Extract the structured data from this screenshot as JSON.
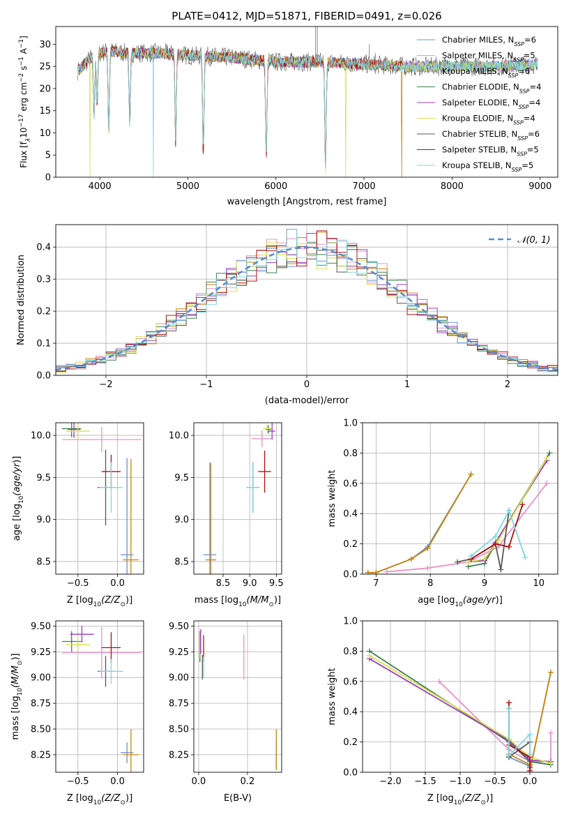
{
  "title": "PLATE=0412, MJD=51871, FIBERID=0491, z=0.026",
  "series_colors": [
    "#6a8fd8",
    "#e991c8",
    "#c8860a",
    "#3f7f4f",
    "#9a3fbf",
    "#d8e04a",
    "#555555",
    "#b01010",
    "#7fd8e0"
  ],
  "chart_data": [
    {
      "id": "spectrum",
      "type": "line",
      "xlabel": "wavelength [Angstrom, rest frame]",
      "ylabel": "Flux [f_λ 10^-17 erg cm^-2 s^-1 A^-1]",
      "ylabel_parts": [
        "Flux [f",
        "λ",
        "10",
        "−17",
        " erg cm",
        "−2",
        " s",
        "−1",
        " A",
        "−1",
        "]"
      ],
      "xlim": [
        3500,
        9200
      ],
      "ylim": [
        0,
        34
      ],
      "xticks": [
        4000,
        5000,
        6000,
        7000,
        8000,
        9000
      ],
      "yticks": [
        0,
        5,
        10,
        15,
        20,
        25,
        30
      ],
      "grid": false,
      "legend_position": "top-right",
      "legend": [
        {
          "name": "Chabrier MILES, N_SSP=6",
          "label": "Chabrier MILES, N",
          "n": "6"
        },
        {
          "name": "Salpeter MILES, N_SSP=5",
          "label": "Salpeter MILES, N",
          "n": "5"
        },
        {
          "name": "Kroupa MILES, N_SSP=6",
          "label": "Kroupa MILES, N",
          "n": "6"
        },
        {
          "name": "Chabrier ELODIE, N_SSP=4",
          "label": "Chabrier ELODIE, N",
          "n": "4"
        },
        {
          "name": "Salpeter ELODIE, N_SSP=4",
          "label": "Salpeter ELODIE, N",
          "n": "4"
        },
        {
          "name": "Kroupa ELODIE, N_SSP=4",
          "label": "Kroupa ELODIE, N",
          "n": "4"
        },
        {
          "name": "Chabrier STELIB, N_SSP=6",
          "label": "Chabrier STELIB, N",
          "n": "6"
        },
        {
          "name": "Salpeter STELIB, N_SSP=5",
          "label": "Salpeter STELIB, N",
          "n": "5"
        },
        {
          "name": "Kroupa STELIB, N_SSP=5",
          "label": "Kroupa STELIB, N",
          "n": "5"
        }
      ],
      "legend_sub": "SSP",
      "continuum": [
        [
          3750,
          24
        ],
        [
          3800,
          25
        ],
        [
          3900,
          27
        ],
        [
          4000,
          28
        ],
        [
          4100,
          28.5
        ],
        [
          4300,
          28
        ],
        [
          4500,
          28
        ],
        [
          4700,
          28
        ],
        [
          5000,
          27.5
        ],
        [
          5500,
          27
        ],
        [
          6000,
          26
        ],
        [
          6500,
          26
        ],
        [
          7000,
          25.5
        ],
        [
          7500,
          25
        ],
        [
          8000,
          25
        ],
        [
          8500,
          25
        ],
        [
          9000,
          25.5
        ]
      ],
      "absorption_lines": [
        [
          3934,
          14
        ],
        [
          3969,
          11
        ],
        [
          4102,
          18
        ],
        [
          4340,
          16
        ],
        [
          4861,
          20
        ],
        [
          5175,
          22
        ],
        [
          5890,
          22
        ],
        [
          6563,
          24
        ]
      ],
      "data_range": [
        3750,
        8970
      ],
      "model_dropouts": [
        {
          "series": 5,
          "x": 3890,
          "to": 0
        },
        {
          "series": 8,
          "x": 4610,
          "to": 0
        },
        {
          "series": 5,
          "x": 6790,
          "to": 0
        },
        {
          "series": 2,
          "x": 7430,
          "to": 0
        }
      ]
    },
    {
      "id": "residuals",
      "type": "step-histogram",
      "xlabel": "(data-model)/error",
      "ylabel": "Normed distribution",
      "xlim": [
        -2.5,
        2.5
      ],
      "ylim": [
        0,
        0.47
      ],
      "xticks": [
        -2,
        -1,
        0,
        1,
        2
      ],
      "xtick_labels": [
        "−2",
        "−1",
        "0",
        "1",
        "2"
      ],
      "yticks": [
        0.0,
        0.1,
        0.2,
        0.3,
        0.4
      ],
      "grid": true,
      "bin_width": 0.1,
      "reference_curve": {
        "name": "N(0,1)",
        "label": "𝒩(0, 1)",
        "mean": 0,
        "sigma": 1,
        "style": "dashed"
      }
    },
    {
      "id": "age_vs_Z",
      "type": "errorbar",
      "xlabel": "Z [log10(Z/Z⊙)]",
      "ylabel": "age [log10(age/yr)]",
      "xlim": [
        -0.78,
        0.33
      ],
      "ylim": [
        8.35,
        10.15
      ],
      "xticks": [
        -0.5,
        0.0
      ],
      "xtick_labels": [
        "−0.5",
        "0.0"
      ],
      "yticks": [
        8.5,
        9.0,
        9.5,
        10.0
      ],
      "ytick_labels": [
        "8.5",
        "9.0",
        "9.5",
        "10.0"
      ],
      "grid": true,
      "points": [
        {
          "s": 0,
          "x": 0.12,
          "y": 8.58,
          "xe": 0.08,
          "ye": 1.15
        },
        {
          "s": 1,
          "x": -0.2,
          "y": 9.95,
          "xe": 0.5,
          "ye": 0.15
        },
        {
          "s": 2,
          "x": 0.17,
          "y": 8.52,
          "xe": 0.1,
          "ye": 1.2
        },
        {
          "s": 3,
          "x": -0.58,
          "y": 10.08,
          "xe": 0.12,
          "ye": 0.1
        },
        {
          "s": 4,
          "x": -0.55,
          "y": 10.07,
          "xe": 0.08,
          "ye": 0.1
        },
        {
          "s": 5,
          "x": -0.5,
          "y": 10.05,
          "xe": 0.15,
          "ye": 0.1
        },
        {
          "s": 6,
          "x": -0.15,
          "y": 9.38,
          "xe": 0.1,
          "ye": 0.45
        },
        {
          "s": 7,
          "x": -0.08,
          "y": 9.57,
          "xe": 0.12,
          "ye": 0.2
        },
        {
          "s": 8,
          "x": -0.08,
          "y": 9.38,
          "xe": 0.15,
          "ye": 0.3
        }
      ]
    },
    {
      "id": "age_vs_mass",
      "type": "errorbar",
      "xlabel": "mass [log10(M/M⊙)]",
      "ylabel": "",
      "xlim": [
        7.95,
        9.6
      ],
      "ylim": [
        8.35,
        10.15
      ],
      "xticks": [
        8.5,
        9.0,
        9.5
      ],
      "xtick_labels": [
        "8.5",
        "9.0",
        "9.5"
      ],
      "yticks": [
        8.5,
        9.0,
        9.5,
        10.0
      ],
      "ytick_labels": [
        "8.5",
        "9.0",
        "9.5",
        "10.0"
      ],
      "grid": true,
      "points": [
        {
          "s": 0,
          "x": 8.25,
          "y": 8.58,
          "xe": 0.12,
          "ye": 1.1
        },
        {
          "s": 1,
          "x": 9.23,
          "y": 9.96,
          "xe": 0.2,
          "ye": 0.1
        },
        {
          "s": 2,
          "x": 8.27,
          "y": 8.52,
          "xe": 0.1,
          "ye": 1.15
        },
        {
          "s": 3,
          "x": 9.35,
          "y": 10.07,
          "xe": 0.05,
          "ye": 0.05
        },
        {
          "s": 4,
          "x": 9.42,
          "y": 10.05,
          "xe": 0.06,
          "ye": 0.1
        },
        {
          "s": 5,
          "x": 9.33,
          "y": 10.08,
          "xe": 0.08,
          "ye": 0.05
        },
        {
          "s": 6,
          "x": 9.06,
          "y": 9.38,
          "xe": 0.12,
          "ye": 0.3
        },
        {
          "s": 7,
          "x": 9.28,
          "y": 9.57,
          "xe": 0.12,
          "ye": 0.25
        },
        {
          "s": 8,
          "x": 9.06,
          "y": 9.38,
          "xe": 0.12,
          "ye": 0.3
        }
      ]
    },
    {
      "id": "mass_weight_vs_age",
      "type": "line",
      "xlabel": "age [log10(age/yr)]",
      "ylabel": "mass weight",
      "xlim": [
        6.75,
        10.35
      ],
      "ylim": [
        0,
        1.0
      ],
      "xticks": [
        7,
        8,
        9,
        10
      ],
      "xtick_labels": [
        "7",
        "8",
        "9",
        "10"
      ],
      "yticks": [
        0.0,
        0.2,
        0.4,
        0.6,
        0.8,
        1.0
      ],
      "ytick_labels": [
        "0.0",
        "0.2",
        "0.4",
        "0.6",
        "0.8",
        "1.0"
      ],
      "grid": true,
      "series": [
        {
          "s": 0,
          "points": [
            [
              6.85,
              0.01
            ],
            [
              7.0,
              0.01
            ],
            [
              7.65,
              0.1
            ],
            [
              7.95,
              0.18
            ],
            [
              8.75,
              0.66
            ]
          ]
        },
        {
          "s": 1,
          "points": [
            [
              7.2,
              0.015
            ],
            [
              7.95,
              0.04
            ],
            [
              8.7,
              0.08
            ],
            [
              9.25,
              0.18
            ],
            [
              10.15,
              0.6
            ]
          ]
        },
        {
          "s": 2,
          "points": [
            [
              6.85,
              0.01
            ],
            [
              7.0,
              0.01
            ],
            [
              7.65,
              0.1
            ],
            [
              7.95,
              0.17
            ],
            [
              8.75,
              0.66
            ]
          ]
        },
        {
          "s": 3,
          "points": [
            [
              8.7,
              0.05
            ],
            [
              9.0,
              0.07
            ],
            [
              9.2,
              0.2
            ],
            [
              10.2,
              0.8
            ]
          ]
        },
        {
          "s": 4,
          "points": [
            [
              8.7,
              0.08
            ],
            [
              9.0,
              0.09
            ],
            [
              9.2,
              0.21
            ],
            [
              10.15,
              0.75
            ]
          ]
        },
        {
          "s": 5,
          "points": [
            [
              8.7,
              0.08
            ],
            [
              9.0,
              0.1
            ],
            [
              9.25,
              0.22
            ],
            [
              10.15,
              0.77
            ]
          ]
        },
        {
          "s": 6,
          "points": [
            [
              8.5,
              0.08
            ],
            [
              8.75,
              0.1
            ],
            [
              9.2,
              0.2
            ],
            [
              9.3,
              0.03
            ],
            [
              9.45,
              0.42
            ]
          ]
        },
        {
          "s": 7,
          "points": [
            [
              8.75,
              0.1
            ],
            [
              9.2,
              0.2
            ],
            [
              9.45,
              0.18
            ],
            [
              9.7,
              0.46
            ]
          ]
        },
        {
          "s": 8,
          "points": [
            [
              8.75,
              0.12
            ],
            [
              9.2,
              0.25
            ],
            [
              9.45,
              0.42
            ],
            [
              9.75,
              0.11
            ]
          ]
        }
      ]
    },
    {
      "id": "mass_vs_Z",
      "type": "errorbar",
      "xlabel": "Z [log10(Z/Z⊙)]",
      "ylabel": "mass [log10(M/M⊙)]",
      "xlim": [
        -0.78,
        0.33
      ],
      "ylim": [
        8.08,
        9.55
      ],
      "xticks": [
        -0.5,
        0.0
      ],
      "xtick_labels": [
        "−0.5",
        "0.0"
      ],
      "yticks": [
        8.25,
        8.5,
        8.75,
        9.0,
        9.25,
        9.5
      ],
      "ytick_labels": [
        "8.25",
        "8.50",
        "8.75",
        "9.00",
        "9.25",
        "9.50"
      ],
      "grid": true,
      "points": [
        {
          "s": 0,
          "x": 0.12,
          "y": 8.27,
          "xe": 0.08,
          "ye": 0.1
        },
        {
          "s": 1,
          "x": -0.2,
          "y": 9.24,
          "xe": 0.5,
          "ye": 0.25
        },
        {
          "s": 2,
          "x": 0.17,
          "y": 8.25,
          "xe": 0.1,
          "ye": 0.25
        },
        {
          "s": 3,
          "x": -0.58,
          "y": 9.35,
          "xe": 0.12,
          "ye": 0.1
        },
        {
          "s": 4,
          "x": -0.45,
          "y": 9.42,
          "xe": 0.15,
          "ye": 0.08
        },
        {
          "s": 5,
          "x": -0.5,
          "y": 9.32,
          "xe": 0.15,
          "ye": 0.08
        },
        {
          "s": 6,
          "x": -0.15,
          "y": 9.06,
          "xe": 0.1,
          "ye": 0.15
        },
        {
          "s": 7,
          "x": -0.08,
          "y": 9.29,
          "xe": 0.12,
          "ye": 0.15
        },
        {
          "s": 8,
          "x": -0.08,
          "y": 9.06,
          "xe": 0.15,
          "ye": 0.12
        }
      ]
    },
    {
      "id": "mass_vs_ebv",
      "type": "errorbar",
      "xlabel": "E(B-V)",
      "ylabel": "",
      "xlim": [
        -0.02,
        0.34
      ],
      "ylim": [
        8.08,
        9.55
      ],
      "xticks": [
        0.0,
        0.2
      ],
      "xtick_labels": [
        "0.0",
        "0.2"
      ],
      "yticks": [
        8.25,
        8.5,
        8.75,
        9.0,
        9.25,
        9.5
      ],
      "ytick_labels": [
        "8.25",
        "8.50",
        "8.75",
        "9.00",
        "9.25",
        "9.50"
      ],
      "grid": true,
      "points": [
        {
          "s": 0,
          "x": 0.318,
          "y": 8.25,
          "xe": 0,
          "ye": 0.13
        },
        {
          "s": 1,
          "x": 0.185,
          "y": 9.2,
          "xe": 0,
          "ye": 0.22
        },
        {
          "s": 2,
          "x": 0.318,
          "y": 8.3,
          "xe": 0,
          "ye": 0.2
        },
        {
          "s": 3,
          "x": 0.005,
          "y": 9.3,
          "xe": 0,
          "ye": 0.15
        },
        {
          "s": 4,
          "x": 0.008,
          "y": 9.35,
          "xe": 0,
          "ye": 0.12
        },
        {
          "s": 5,
          "x": 0.003,
          "y": 9.32,
          "xe": 0,
          "ye": 0.12
        },
        {
          "s": 6,
          "x": 0.015,
          "y": 9.1,
          "xe": 0,
          "ye": 0.12
        },
        {
          "s": 7,
          "x": 0.02,
          "y": 9.28,
          "xe": 0,
          "ye": 0.13
        },
        {
          "s": 8,
          "x": 0.02,
          "y": 9.1,
          "xe": 0,
          "ye": 0.1
        }
      ]
    },
    {
      "id": "mass_weight_vs_Z",
      "type": "line",
      "xlabel": "Z [log10(Z/Z⊙)]",
      "ylabel": "mass weight",
      "xlim": [
        -2.4,
        0.4
      ],
      "ylim": [
        0,
        1.0
      ],
      "xticks": [
        -2.0,
        -1.5,
        -1.0,
        -0.5,
        0.0
      ],
      "xtick_labels": [
        "−2.0",
        "−1.5",
        "−1.0",
        "−0.5",
        "0.0"
      ],
      "yticks": [
        0.0,
        0.2,
        0.4,
        0.6,
        0.8,
        1.0
      ],
      "ytick_labels": [
        "0.0",
        "0.2",
        "0.4",
        "0.6",
        "0.8",
        "1.0"
      ],
      "grid": true,
      "series": [
        {
          "s": 0,
          "points": [
            [
              -0.3,
              0.1
            ],
            [
              0.0,
              0.04
            ],
            [
              0.0,
              0.01
            ],
            [
              0.3,
              0.66
            ]
          ]
        },
        {
          "s": 1,
          "points": [
            [
              -1.3,
              0.6
            ],
            [
              -0.3,
              0.15
            ],
            [
              0.0,
              0.07
            ],
            [
              0.3,
              0.07
            ],
            [
              0.3,
              0.26
            ]
          ]
        },
        {
          "s": 2,
          "points": [
            [
              -0.3,
              0.12
            ],
            [
              0.0,
              0.05
            ],
            [
              0.0,
              0.01
            ],
            [
              0.3,
              0.66
            ]
          ]
        },
        {
          "s": 3,
          "points": [
            [
              -2.3,
              0.8
            ],
            [
              -0.3,
              0.2
            ],
            [
              0.0,
              0.07
            ],
            [
              0.3,
              0.05
            ]
          ]
        },
        {
          "s": 4,
          "points": [
            [
              -2.3,
              0.75
            ],
            [
              -0.3,
              0.21
            ],
            [
              0.0,
              0.08
            ],
            [
              0.3,
              0.07
            ]
          ]
        },
        {
          "s": 5,
          "points": [
            [
              -2.3,
              0.77
            ],
            [
              -0.3,
              0.22
            ],
            [
              0.0,
              0.1
            ],
            [
              0.3,
              0.06
            ]
          ]
        },
        {
          "s": 6,
          "points": [
            [
              -0.3,
              0.42
            ],
            [
              -0.3,
              0.1
            ],
            [
              0.0,
              0.2
            ],
            [
              0.0,
              0.03
            ]
          ]
        },
        {
          "s": 7,
          "points": [
            [
              -0.3,
              0.46
            ],
            [
              -0.3,
              0.18
            ],
            [
              0.0,
              0.1
            ],
            [
              0.0,
              0.01
            ]
          ]
        },
        {
          "s": 8,
          "points": [
            [
              -0.3,
              0.42
            ],
            [
              -0.3,
              0.11
            ],
            [
              0.0,
              0.25
            ],
            [
              0.0,
              0.12
            ]
          ]
        }
      ]
    }
  ]
}
